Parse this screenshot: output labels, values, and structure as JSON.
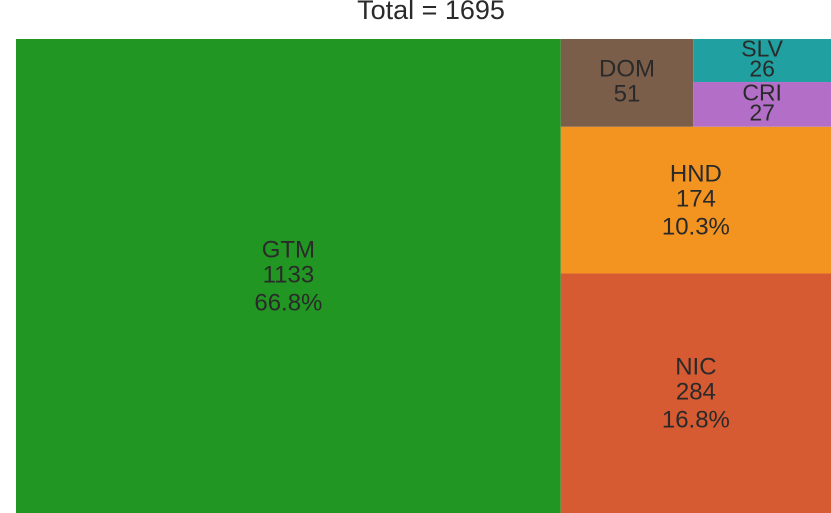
{
  "chart_data": {
    "type": "treemap",
    "title": "Total = 1695",
    "categories": [
      "GTM",
      "NIC",
      "HND",
      "DOM",
      "SLV",
      "CRI"
    ],
    "values": [
      1133,
      284,
      174,
      51,
      26,
      27
    ],
    "percent_labels": [
      "66.8%",
      "16.8%",
      "10.3%",
      null,
      null,
      null
    ],
    "colors": [
      "#229622",
      "#d65a32",
      "#f39320",
      "#7b5e4a",
      "#20a0a0",
      "#b36fc8"
    ]
  }
}
